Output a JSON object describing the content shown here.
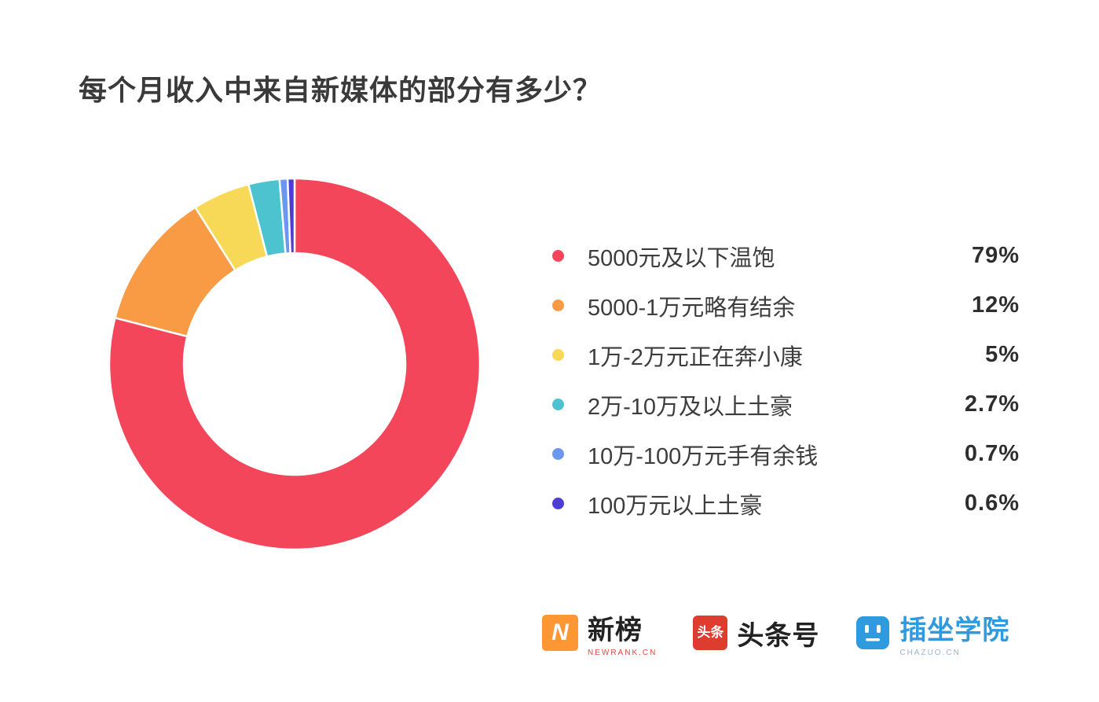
{
  "title": "每个月收入中来自新媒体的部分有多少？",
  "chart_data": {
    "type": "pie",
    "donut": true,
    "title": "每个月收入中来自新媒体的部分有多少？",
    "legend_position": "right",
    "start_angle_deg": 0,
    "direction": "clockwise",
    "inner_radius_ratio": 0.6,
    "segments": [
      {
        "label": "5000元及以下温饱",
        "value": 79,
        "display": "79%",
        "color": "#f4465b"
      },
      {
        "label": "5000-1万元略有结余",
        "value": 12,
        "display": "12%",
        "color": "#f99b45"
      },
      {
        "label": "1万-2万元正在奔小康",
        "value": 5,
        "display": "5%",
        "color": "#f8d957"
      },
      {
        "label": "2万-10万及以上土豪",
        "value": 2.7,
        "display": "2.7%",
        "color": "#4cc3cf"
      },
      {
        "label": "10万-100万元手有余钱",
        "value": 0.7,
        "display": "0.7%",
        "color": "#6b97ee"
      },
      {
        "label": "100万元以上土豪",
        "value": 0.6,
        "display": "0.6%",
        "color": "#4d3dd5"
      }
    ]
  },
  "footer": {
    "newrank": {
      "name": "新榜",
      "sub": "NEWRANK.CN",
      "logo_letter": "N",
      "logo_color": "#fc9733"
    },
    "toutiao": {
      "name": "头条号",
      "badge": "头条",
      "logo_color": "#dd3c2e"
    },
    "chazuo": {
      "name": "插坐学院",
      "sub": "CHAZUO.CN",
      "logo_color": "#2f9ade"
    }
  }
}
